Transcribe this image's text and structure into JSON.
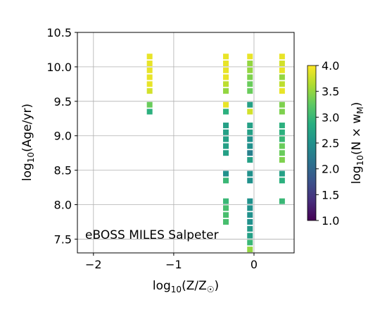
{
  "chart_data": {
    "type": "heatmap",
    "annotation": "eBOSS MILES Salpeter",
    "xlabel": {
      "main": "log",
      "sub": "10",
      "rest": "(Z/Z",
      "sun": "☉",
      "close": ")"
    },
    "ylabel": {
      "main": "log",
      "sub": "10",
      "rest": "(Age/yr)"
    },
    "colorbar_label": {
      "main": "log",
      "sub": "10",
      "rest": "(N × w",
      "wsub": "M",
      "close": ")"
    },
    "xlim": [
      -2.2,
      0.5
    ],
    "ylim": [
      7.3,
      10.5
    ],
    "x_ticks": [
      -2,
      -1,
      0
    ],
    "x_tick_labels": [
      "−2",
      "−1",
      "0"
    ],
    "y_ticks": [
      7.5,
      8.0,
      8.5,
      9.0,
      9.5,
      10.0,
      10.5
    ],
    "y_tick_labels": [
      "7.5",
      "8.0",
      "8.5",
      "9.0",
      "9.5",
      "10.0",
      "10.5"
    ],
    "grid": true,
    "colormap": "viridis",
    "clim": [
      1.0,
      4.0
    ],
    "colorbar_ticks": [
      1.0,
      1.5,
      2.0,
      2.5,
      3.0,
      3.5,
      4.0
    ],
    "colorbar_tick_labels": [
      "1.0",
      "1.5",
      "2.0",
      "2.5",
      "3.0",
      "3.5",
      "4.0"
    ],
    "columns": [
      {
        "x": -1.3,
        "ages": [
          9.35,
          9.45,
          9.65,
          9.75,
          9.85,
          9.95,
          10.05,
          10.15
        ],
        "values": [
          2.9,
          3.3,
          3.8,
          3.9,
          3.9,
          3.9,
          3.9,
          3.9
        ]
      },
      {
        "x": -0.35,
        "ages": [
          7.75,
          7.85,
          7.95,
          8.05,
          8.35,
          8.45,
          8.75,
          8.85,
          8.95,
          9.05,
          9.15,
          9.35,
          9.45,
          9.65,
          9.75,
          9.85,
          9.95,
          10.05,
          10.15
        ],
        "values": [
          3.1,
          3.1,
          3.1,
          3.0,
          3.0,
          2.5,
          2.7,
          2.7,
          2.7,
          2.7,
          2.7,
          2.9,
          3.9,
          3.5,
          3.7,
          3.9,
          3.9,
          3.9,
          3.9
        ]
      },
      {
        "x": -0.05,
        "ages": [
          7.35,
          7.45,
          7.55,
          7.65,
          7.75,
          7.85,
          7.95,
          8.05,
          8.35,
          8.45,
          8.65,
          8.75,
          8.85,
          8.95,
          9.05,
          9.15,
          9.35,
          9.45,
          9.65,
          9.75,
          9.85,
          9.95,
          10.05,
          10.15
        ],
        "values": [
          3.5,
          3.0,
          2.7,
          2.6,
          2.5,
          2.5,
          2.5,
          2.5,
          2.5,
          2.5,
          2.7,
          2.3,
          2.5,
          2.5,
          2.7,
          2.7,
          3.8,
          2.7,
          3.3,
          3.3,
          3.4,
          3.5,
          3.5,
          3.9
        ]
      },
      {
        "x": 0.35,
        "ages": [
          8.05,
          8.35,
          8.45,
          8.65,
          8.75,
          8.85,
          8.95,
          9.05,
          9.15,
          9.35,
          9.45,
          9.65,
          9.75,
          9.85,
          9.95,
          10.05,
          10.15
        ],
        "values": [
          3.0,
          2.9,
          2.7,
          3.4,
          3.3,
          3.3,
          3.0,
          2.9,
          2.9,
          3.4,
          3.4,
          3.9,
          3.7,
          3.5,
          3.9,
          3.8,
          3.9
        ]
      }
    ]
  }
}
